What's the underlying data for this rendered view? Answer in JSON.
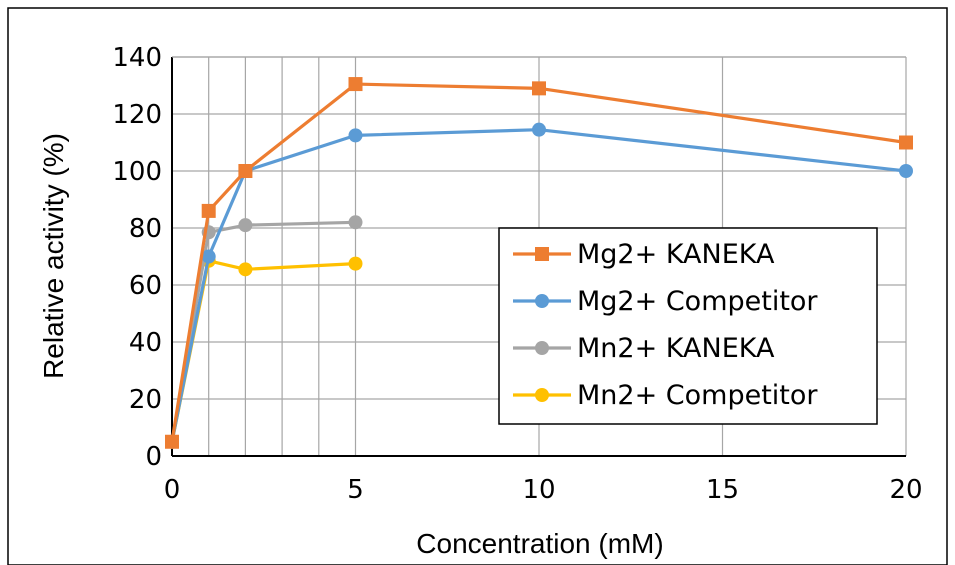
{
  "chart_data": {
    "type": "line",
    "title": "",
    "xlabel": "Concentration (mM)",
    "ylabel": "Relative activity (%)",
    "xlim": [
      0,
      20
    ],
    "ylim": [
      0,
      140
    ],
    "xticks": [
      0,
      5,
      10,
      15,
      20
    ],
    "yticks": [
      0,
      20,
      40,
      60,
      80,
      100,
      120,
      140
    ],
    "grid": true,
    "legend_position": "center-right",
    "series": [
      {
        "name": "Mg2+ KANEKA",
        "color": "#ed7d31",
        "marker": "square",
        "x": [
          0,
          1,
          2,
          5,
          10,
          20
        ],
        "y": [
          5,
          86,
          100,
          130.5,
          129,
          110
        ]
      },
      {
        "name": "Mg2+ Competitor",
        "color": "#5b9bd5",
        "marker": "circle",
        "x": [
          0,
          1,
          2,
          5,
          10,
          20
        ],
        "y": [
          5,
          70,
          100,
          112.5,
          114.5,
          100
        ]
      },
      {
        "name": "Mn2+ KANEKA",
        "color": "#a5a5a5",
        "marker": "circle",
        "x": [
          0,
          1,
          2,
          5
        ],
        "y": [
          5,
          78.5,
          81,
          82
        ]
      },
      {
        "name": "Mn2+ Competitor",
        "color": "#ffc000",
        "marker": "circle",
        "x": [
          0,
          1,
          2,
          5
        ],
        "y": [
          5,
          68.5,
          65.5,
          67.5
        ]
      }
    ]
  }
}
